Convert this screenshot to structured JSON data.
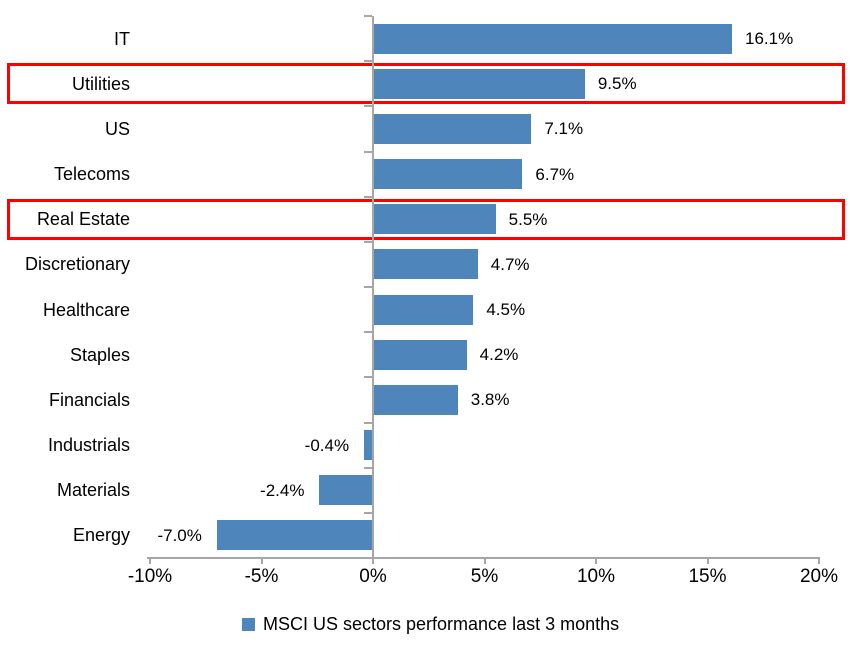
{
  "chart_data": {
    "type": "bar",
    "orientation": "horizontal",
    "title": "",
    "categories": [
      "IT",
      "Utilities",
      "US",
      "Telecoms",
      "Real Estate",
      "Discretionary",
      "Healthcare",
      "Staples",
      "Financials",
      "Industrials",
      "Materials",
      "Energy"
    ],
    "values": [
      16.1,
      9.5,
      7.1,
      6.7,
      5.5,
      4.7,
      4.5,
      4.2,
      3.8,
      -0.4,
      -2.4,
      -7.0
    ],
    "data_labels": [
      "16.1%",
      "9.5%",
      "7.1%",
      "6.7%",
      "5.5%",
      "4.7%",
      "4.5%",
      "4.2%",
      "3.8%",
      "-0.4%",
      "-2.4%",
      "-7.0%"
    ],
    "highlighted_categories": [
      "Utilities",
      "Real Estate"
    ],
    "x_axis": {
      "range": [
        -10,
        20
      ],
      "ticks": [
        -10,
        -5,
        0,
        5,
        10,
        15,
        20
      ],
      "tick_labels": [
        "-10%",
        "-5%",
        "0%",
        "5%",
        "10%",
        "15%",
        "20%"
      ]
    },
    "grid": false,
    "legend": {
      "position": "bottom",
      "label": "MSCI US sectors performance last 3 months"
    },
    "colors": {
      "bar": "#4E86BC",
      "highlight_box": "#FE0000",
      "axis": "#A6A6A6",
      "text": "#000000"
    }
  }
}
